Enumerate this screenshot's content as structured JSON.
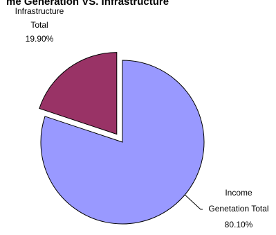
{
  "chart_data": {
    "type": "pie",
    "title": "me Generation VS. Infrastructure",
    "slices": [
      {
        "name": "Income Genetation Total",
        "label_lines": [
          "Income",
          "Genetation Total"
        ],
        "percent_label": "80.10%",
        "value": 80.1,
        "color": "#9999ff",
        "exploded": false
      },
      {
        "name": "Infrastructure Total",
        "label_lines": [
          "Infrastructure",
          "Total"
        ],
        "percent_label": "19.90%",
        "value": 19.9,
        "color": "#993366",
        "exploded": true
      }
    ],
    "legend": "none"
  }
}
